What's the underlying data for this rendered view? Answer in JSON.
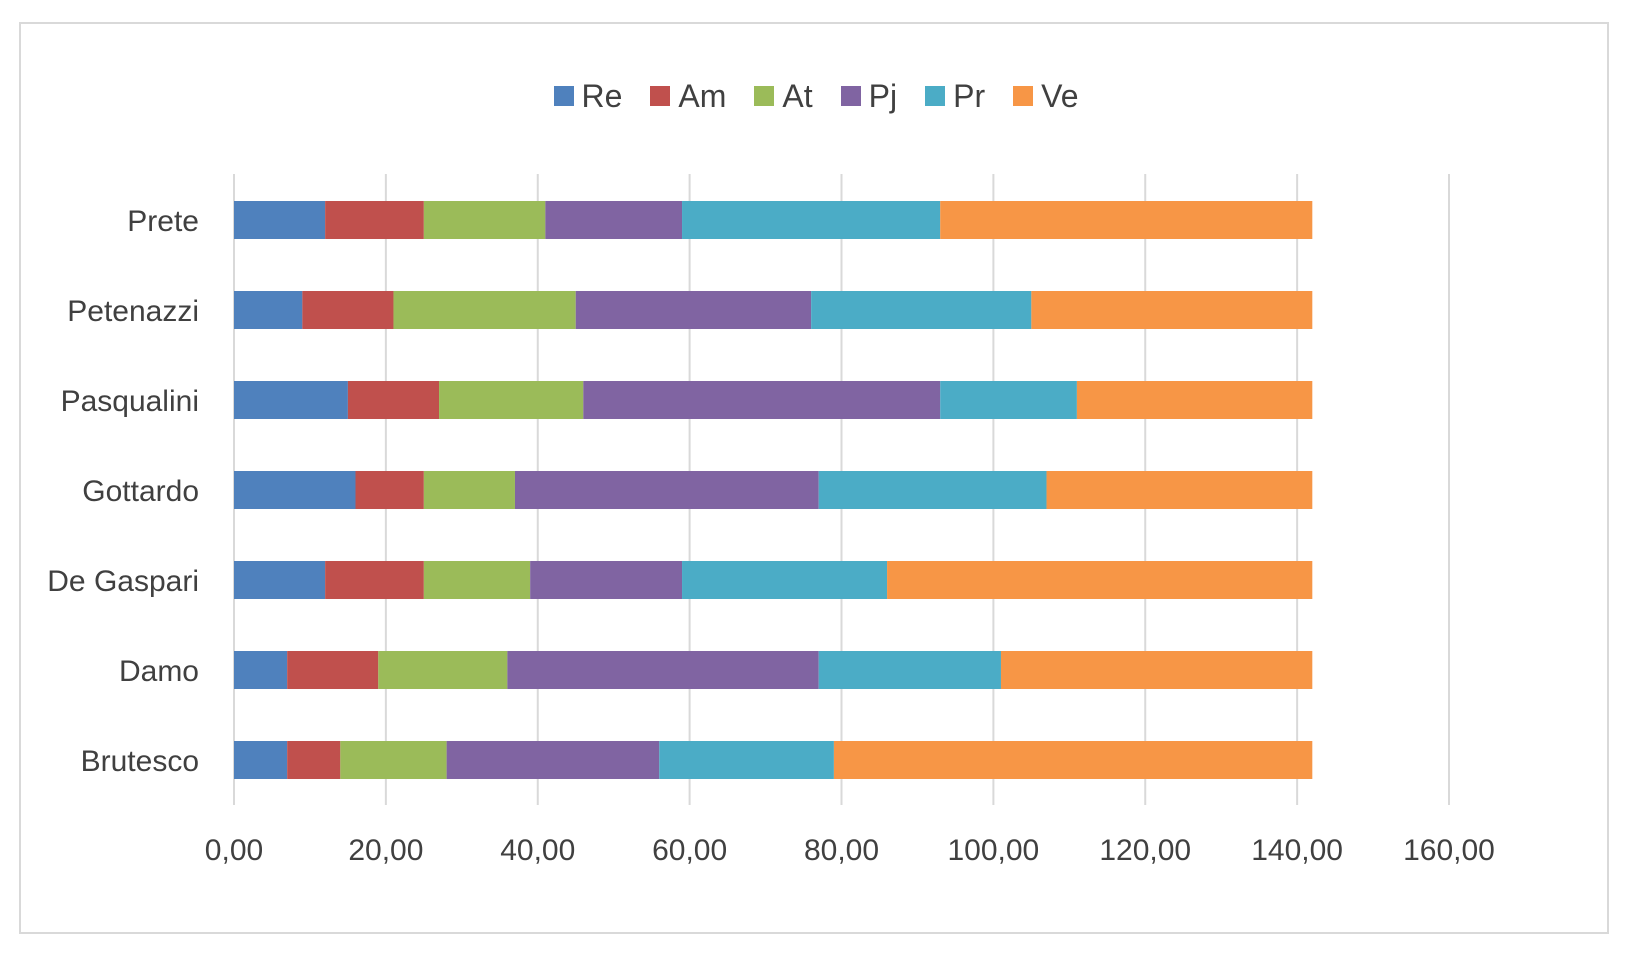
{
  "chart_data": {
    "type": "bar",
    "orientation": "horizontal",
    "stacked": true,
    "title": "",
    "xlabel": "",
    "ylabel": "",
    "xlim": [
      0,
      160
    ],
    "ticks": [
      "0,00",
      "20,00",
      "40,00",
      "60,00",
      "80,00",
      "100,00",
      "120,00",
      "140,00",
      "160,00"
    ],
    "tick_values": [
      0,
      20,
      40,
      60,
      80,
      100,
      120,
      140,
      160
    ],
    "grid": true,
    "legend_position": "top",
    "categories": [
      "Prete",
      "Petenazzi",
      "Pasqualini",
      "Gottardo",
      "De Gaspari",
      "Damo",
      "Brutesco"
    ],
    "series": [
      {
        "name": "Re",
        "color": "#4f81bd",
        "values": [
          12,
          9,
          15,
          16,
          12,
          7,
          7
        ]
      },
      {
        "name": "Am",
        "color": "#c0504d",
        "values": [
          13,
          12,
          12,
          9,
          13,
          12,
          7
        ]
      },
      {
        "name": "At",
        "color": "#9bbb59",
        "values": [
          16,
          24,
          19,
          12,
          14,
          17,
          14
        ]
      },
      {
        "name": "Pj",
        "color": "#8064a2",
        "values": [
          18,
          31,
          47,
          40,
          20,
          41,
          28
        ]
      },
      {
        "name": "Pr",
        "color": "#4bacc6",
        "values": [
          34,
          29,
          18,
          30,
          27,
          24,
          23
        ]
      },
      {
        "name": "Ve",
        "color": "#f79646",
        "values": [
          49,
          37,
          31,
          35,
          56,
          41,
          63
        ]
      }
    ]
  }
}
